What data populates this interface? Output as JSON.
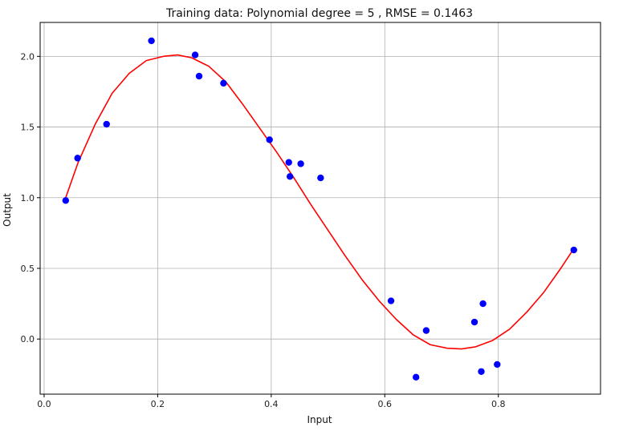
{
  "chart_data": {
    "type": "scatter",
    "title": "Training data: Polynomial degree = 5 , RMSE = 0.1463",
    "xlabel": "Input",
    "ylabel": "Output",
    "xlim": [
      -0.007,
      0.98
    ],
    "ylim": [
      -0.39,
      2.24
    ],
    "grid": true,
    "x_ticks": [
      0.0,
      0.2,
      0.4,
      0.6,
      0.8
    ],
    "x_tick_labels": [
      "0.0",
      "0.2",
      "0.4",
      "0.6",
      "0.8"
    ],
    "y_ticks": [
      0.0,
      0.5,
      1.0,
      1.5,
      2.0
    ],
    "y_tick_labels": [
      "0.0",
      "0.5",
      "1.0",
      "1.5",
      "2.0"
    ],
    "series": [
      {
        "kind": "scatter",
        "color": "#0000ff",
        "points": [
          {
            "x": 0.038,
            "y": 0.98
          },
          {
            "x": 0.059,
            "y": 1.28
          },
          {
            "x": 0.11,
            "y": 1.52
          },
          {
            "x": 0.189,
            "y": 2.11
          },
          {
            "x": 0.266,
            "y": 2.01
          },
          {
            "x": 0.273,
            "y": 1.86
          },
          {
            "x": 0.316,
            "y": 1.81
          },
          {
            "x": 0.397,
            "y": 1.41
          },
          {
            "x": 0.431,
            "y": 1.25
          },
          {
            "x": 0.433,
            "y": 1.15
          },
          {
            "x": 0.452,
            "y": 1.24
          },
          {
            "x": 0.487,
            "y": 1.14
          },
          {
            "x": 0.611,
            "y": 0.27
          },
          {
            "x": 0.655,
            "y": -0.27
          },
          {
            "x": 0.673,
            "y": 0.06
          },
          {
            "x": 0.758,
            "y": 0.12
          },
          {
            "x": 0.77,
            "y": -0.23
          },
          {
            "x": 0.773,
            "y": 0.25
          },
          {
            "x": 0.798,
            "y": -0.18
          },
          {
            "x": 0.933,
            "y": 0.63
          }
        ]
      },
      {
        "kind": "line",
        "color": "#ff0000",
        "points": [
          {
            "x": 0.038,
            "y": 1.0
          },
          {
            "x": 0.06,
            "y": 1.25
          },
          {
            "x": 0.09,
            "y": 1.52
          },
          {
            "x": 0.12,
            "y": 1.74
          },
          {
            "x": 0.15,
            "y": 1.88
          },
          {
            "x": 0.18,
            "y": 1.97
          },
          {
            "x": 0.21,
            "y": 2.0
          },
          {
            "x": 0.235,
            "y": 2.01
          },
          {
            "x": 0.26,
            "y": 1.99
          },
          {
            "x": 0.29,
            "y": 1.93
          },
          {
            "x": 0.32,
            "y": 1.82
          },
          {
            "x": 0.35,
            "y": 1.66
          },
          {
            "x": 0.38,
            "y": 1.49
          },
          {
            "x": 0.41,
            "y": 1.32
          },
          {
            "x": 0.44,
            "y": 1.14
          },
          {
            "x": 0.47,
            "y": 0.95
          },
          {
            "x": 0.5,
            "y": 0.77
          },
          {
            "x": 0.53,
            "y": 0.59
          },
          {
            "x": 0.56,
            "y": 0.42
          },
          {
            "x": 0.59,
            "y": 0.27
          },
          {
            "x": 0.62,
            "y": 0.14
          },
          {
            "x": 0.65,
            "y": 0.03
          },
          {
            "x": 0.68,
            "y": -0.04
          },
          {
            "x": 0.71,
            "y": -0.065
          },
          {
            "x": 0.735,
            "y": -0.07
          },
          {
            "x": 0.76,
            "y": -0.055
          },
          {
            "x": 0.79,
            "y": -0.01
          },
          {
            "x": 0.82,
            "y": 0.07
          },
          {
            "x": 0.85,
            "y": 0.19
          },
          {
            "x": 0.88,
            "y": 0.33
          },
          {
            "x": 0.91,
            "y": 0.5
          },
          {
            "x": 0.933,
            "y": 0.64
          }
        ]
      }
    ]
  }
}
